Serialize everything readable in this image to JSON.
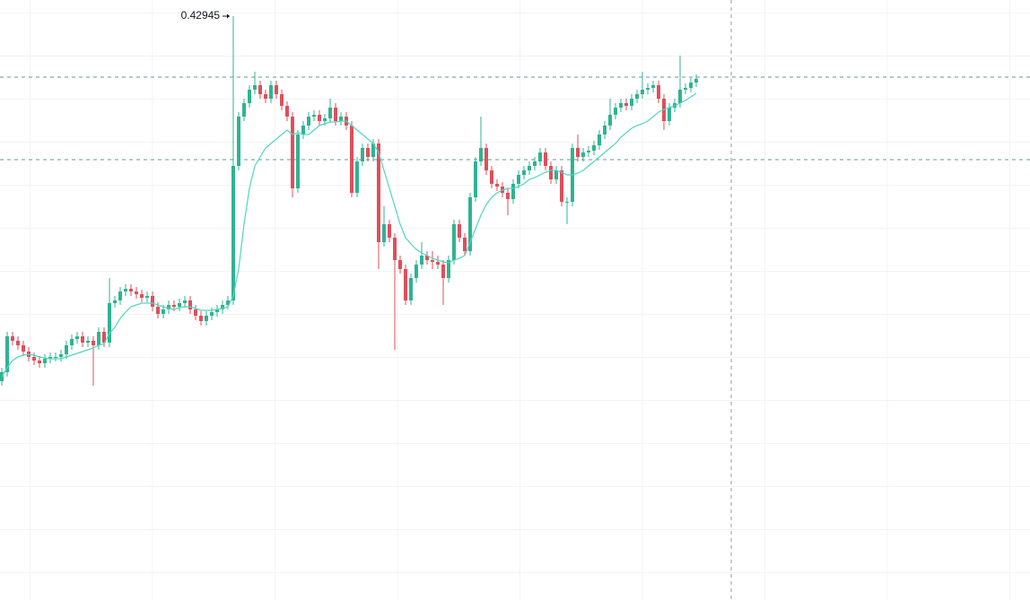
{
  "chart_data": {
    "type": "candlestick",
    "ylim": [
      0.36435,
      0.43125
    ],
    "up_color": "#2fb393",
    "down_color": "#de4f5c",
    "ma_color": "#4fd6bf",
    "hline_color": "#5b9c94",
    "hlines": [
      0.42265,
      0.41345
    ],
    "open": [
      0.38875,
      0.38975,
      0.39375,
      0.39325,
      0.39275,
      0.39205,
      0.39145,
      0.39105,
      0.39075,
      0.39125,
      0.39145,
      0.39145,
      0.39175,
      0.39275,
      0.39345,
      0.39375,
      0.39305,
      0.39325,
      0.39275,
      0.39425,
      0.39305,
      0.39745,
      0.39775,
      0.39875,
      0.39905,
      0.39875,
      0.39845,
      0.39805,
      0.39825,
      0.39705,
      0.39625,
      0.39675,
      0.39725,
      0.39705,
      0.39745,
      0.39775,
      0.39675,
      0.39605,
      0.39545,
      0.39605,
      0.39645,
      0.39675,
      0.39725,
      0.39775,
      0.41275,
      0.41825,
      0.41975,
      0.42125,
      0.42175,
      0.42075,
      0.42025,
      0.42175,
      0.42075,
      0.41945,
      0.41825,
      0.41025,
      0.41625,
      0.41725,
      0.41825,
      0.41845,
      0.41775,
      0.41805,
      0.41925,
      0.41775,
      0.41825,
      0.41725,
      0.40975,
      0.41325,
      0.41475,
      0.41375,
      0.41525,
      0.40425,
      0.40625,
      0.40475,
      0.40225,
      0.40125,
      0.39775,
      0.40025,
      0.40175,
      0.40275,
      0.40225,
      0.40205,
      0.40175,
      0.40025,
      0.40225,
      0.40625,
      0.40475,
      0.40325,
      0.40925,
      0.41325,
      0.41475,
      0.41225,
      0.41075,
      0.41045,
      0.40975,
      0.40905,
      0.41075,
      0.41175,
      0.41225,
      0.41275,
      0.41325,
      0.41425,
      0.41275,
      0.41125,
      0.41225,
      0.40875,
      0.40875,
      0.41475,
      0.41375,
      0.41425,
      0.41445,
      0.41505,
      0.41625,
      0.41725,
      0.41845,
      0.41925,
      0.41975,
      0.41945,
      0.42025,
      0.42075,
      0.42125,
      0.42145,
      0.42175,
      0.42025,
      0.41775,
      0.41925,
      0.41975,
      0.42125,
      0.42145,
      0.42205
    ],
    "high": [
      0.39025,
      0.39425,
      0.39425,
      0.39375,
      0.39325,
      0.39255,
      0.39195,
      0.39155,
      0.39175,
      0.39195,
      0.39195,
      0.39225,
      0.39325,
      0.39395,
      0.39425,
      0.39425,
      0.39375,
      0.39375,
      0.39475,
      0.39475,
      0.40025,
      0.39825,
      0.39925,
      0.39955,
      0.39955,
      0.39925,
      0.39895,
      0.39875,
      0.39875,
      0.39755,
      0.39725,
      0.39775,
      0.39775,
      0.39795,
      0.39825,
      0.39825,
      0.39725,
      0.39655,
      0.39655,
      0.39695,
      0.39725,
      0.39775,
      0.39825,
      0.42945,
      0.41875,
      0.42025,
      0.42175,
      0.42325,
      0.42225,
      0.42125,
      0.42225,
      0.42225,
      0.42125,
      0.41995,
      0.41875,
      0.41675,
      0.41775,
      0.41875,
      0.41895,
      0.41895,
      0.41855,
      0.42025,
      0.41975,
      0.41875,
      0.41875,
      0.41775,
      0.41375,
      0.41525,
      0.41525,
      0.41575,
      0.41575,
      0.40825,
      0.40675,
      0.40525,
      0.40275,
      0.40175,
      0.40075,
      0.40225,
      0.40425,
      0.40325,
      0.40325,
      0.40275,
      0.40225,
      0.40275,
      0.40675,
      0.40675,
      0.40525,
      0.40975,
      0.41375,
      0.41825,
      0.41525,
      0.41275,
      0.41125,
      0.41095,
      0.41025,
      0.41125,
      0.41225,
      0.41275,
      0.41325,
      0.41375,
      0.41475,
      0.41475,
      0.41325,
      0.41275,
      0.41275,
      0.40925,
      0.41525,
      0.41625,
      0.41475,
      0.41495,
      0.41555,
      0.41675,
      0.41775,
      0.42025,
      0.41975,
      0.42025,
      0.42025,
      0.42075,
      0.42125,
      0.42325,
      0.42195,
      0.42225,
      0.42225,
      0.42075,
      0.41975,
      0.42025,
      0.42505,
      0.42195,
      0.42255,
      0.42295
    ],
    "low": [
      0.38825,
      0.38925,
      0.39275,
      0.39225,
      0.39155,
      0.39095,
      0.39055,
      0.39025,
      0.39025,
      0.39075,
      0.39095,
      0.39095,
      0.39125,
      0.39225,
      0.39295,
      0.39255,
      0.39255,
      0.38825,
      0.39225,
      0.39255,
      0.39255,
      0.39695,
      0.39725,
      0.39825,
      0.39825,
      0.39795,
      0.39755,
      0.39755,
      0.39655,
      0.39575,
      0.39575,
      0.39625,
      0.39655,
      0.39655,
      0.39695,
      0.39625,
      0.39555,
      0.39495,
      0.39495,
      0.39555,
      0.39595,
      0.39625,
      0.39675,
      0.39725,
      0.41225,
      0.41775,
      0.41925,
      0.42075,
      0.42025,
      0.41975,
      0.41975,
      0.42025,
      0.41895,
      0.41775,
      0.40925,
      0.40975,
      0.41575,
      0.41675,
      0.41775,
      0.41725,
      0.41725,
      0.41755,
      0.41725,
      0.41725,
      0.41675,
      0.40925,
      0.40925,
      0.41275,
      0.41325,
      0.41325,
      0.40125,
      0.40375,
      0.40425,
      0.39225,
      0.40075,
      0.39725,
      0.39725,
      0.39975,
      0.40125,
      0.40175,
      0.40125,
      0.40125,
      0.39725,
      0.39975,
      0.40175,
      0.40425,
      0.40275,
      0.40275,
      0.40875,
      0.41275,
      0.41175,
      0.41025,
      0.40995,
      0.40925,
      0.40725,
      0.40855,
      0.41025,
      0.41125,
      0.41175,
      0.41225,
      0.41275,
      0.41225,
      0.41075,
      0.41075,
      0.40825,
      0.40625,
      0.40825,
      0.41325,
      0.41325,
      0.41375,
      0.41395,
      0.41455,
      0.41575,
      0.41675,
      0.41795,
      0.41875,
      0.41895,
      0.41895,
      0.41975,
      0.42025,
      0.42075,
      0.42095,
      0.41975,
      0.41675,
      0.41725,
      0.41875,
      0.41925,
      0.42075,
      0.42095,
      0.42155
    ],
    "close": [
      0.38975,
      0.39375,
      0.39325,
      0.39275,
      0.39205,
      0.39145,
      0.39105,
      0.39075,
      0.39125,
      0.39145,
      0.39145,
      0.39175,
      0.39275,
      0.39345,
      0.39375,
      0.39305,
      0.39325,
      0.39275,
      0.39425,
      0.39305,
      0.39745,
      0.39775,
      0.39875,
      0.39905,
      0.39875,
      0.39845,
      0.39805,
      0.39825,
      0.39705,
      0.39625,
      0.39675,
      0.39725,
      0.39705,
      0.39745,
      0.39775,
      0.39675,
      0.39605,
      0.39545,
      0.39605,
      0.39645,
      0.39675,
      0.39725,
      0.39775,
      0.41275,
      0.41825,
      0.41975,
      0.42125,
      0.42175,
      0.42075,
      0.42025,
      0.42175,
      0.42075,
      0.41945,
      0.41825,
      0.41025,
      0.41625,
      0.41725,
      0.41825,
      0.41845,
      0.41775,
      0.41805,
      0.41925,
      0.41775,
      0.41825,
      0.41725,
      0.40975,
      0.41325,
      0.41475,
      0.41375,
      0.41525,
      0.40425,
      0.40625,
      0.40475,
      0.40225,
      0.40125,
      0.39775,
      0.40025,
      0.40175,
      0.40275,
      0.40225,
      0.40205,
      0.40175,
      0.40025,
      0.40225,
      0.40625,
      0.40475,
      0.40325,
      0.40925,
      0.41325,
      0.41475,
      0.41225,
      0.41075,
      0.41045,
      0.40975,
      0.40905,
      0.41075,
      0.41175,
      0.41225,
      0.41275,
      0.41325,
      0.41425,
      0.41275,
      0.41125,
      0.41225,
      0.40875,
      0.40875,
      0.41475,
      0.41375,
      0.41425,
      0.41445,
      0.41505,
      0.41625,
      0.41725,
      0.41845,
      0.41925,
      0.41975,
      0.41945,
      0.42025,
      0.42075,
      0.42125,
      0.42145,
      0.42175,
      0.42025,
      0.41775,
      0.41925,
      0.41975,
      0.42125,
      0.42145,
      0.42205,
      0.42245
    ],
    "ma_values": [
      0.38925,
      0.39025,
      0.39105,
      0.39145,
      0.39165,
      0.39175,
      0.39165,
      0.39145,
      0.39135,
      0.39125,
      0.39125,
      0.39125,
      0.39145,
      0.39165,
      0.39185,
      0.39205,
      0.39225,
      0.39245,
      0.39275,
      0.39295,
      0.39405,
      0.39475,
      0.39575,
      0.39645,
      0.39705,
      0.39725,
      0.39745,
      0.39745,
      0.39745,
      0.39725,
      0.39705,
      0.39685,
      0.39675,
      0.39695,
      0.39705,
      0.39705,
      0.39685,
      0.39665,
      0.39665,
      0.39665,
      0.39675,
      0.39685,
      0.39705,
      0.39825,
      0.40125,
      0.40625,
      0.41025,
      0.41275,
      0.41375,
      0.41475,
      0.41525,
      0.41575,
      0.41625,
      0.41675,
      0.41625,
      0.41645,
      0.41625,
      0.41625,
      0.41675,
      0.41725,
      0.41745,
      0.41765,
      0.41765,
      0.41775,
      0.41775,
      0.41725,
      0.41675,
      0.41625,
      0.41575,
      0.41525,
      0.41425,
      0.41225,
      0.41025,
      0.40825,
      0.40625,
      0.40475,
      0.40405,
      0.40345,
      0.40305,
      0.40275,
      0.40245,
      0.40225,
      0.40205,
      0.40195,
      0.40225,
      0.40245,
      0.40275,
      0.40425,
      0.40575,
      0.40725,
      0.40845,
      0.40925,
      0.40975,
      0.41005,
      0.41025,
      0.41025,
      0.41045,
      0.41075,
      0.41125,
      0.41145,
      0.41175,
      0.41205,
      0.41225,
      0.41225,
      0.41205,
      0.41175,
      0.41175,
      0.41195,
      0.41225,
      0.41275,
      0.41325,
      0.41375,
      0.41425,
      0.41475,
      0.41525,
      0.41595,
      0.41645,
      0.41695,
      0.41725,
      0.41745,
      0.41775,
      0.41825,
      0.41875,
      0.41905,
      0.41925,
      0.41945,
      0.41975,
      0.42005,
      0.42045,
      0.42085
    ],
    "max_index": 43
  }
}
